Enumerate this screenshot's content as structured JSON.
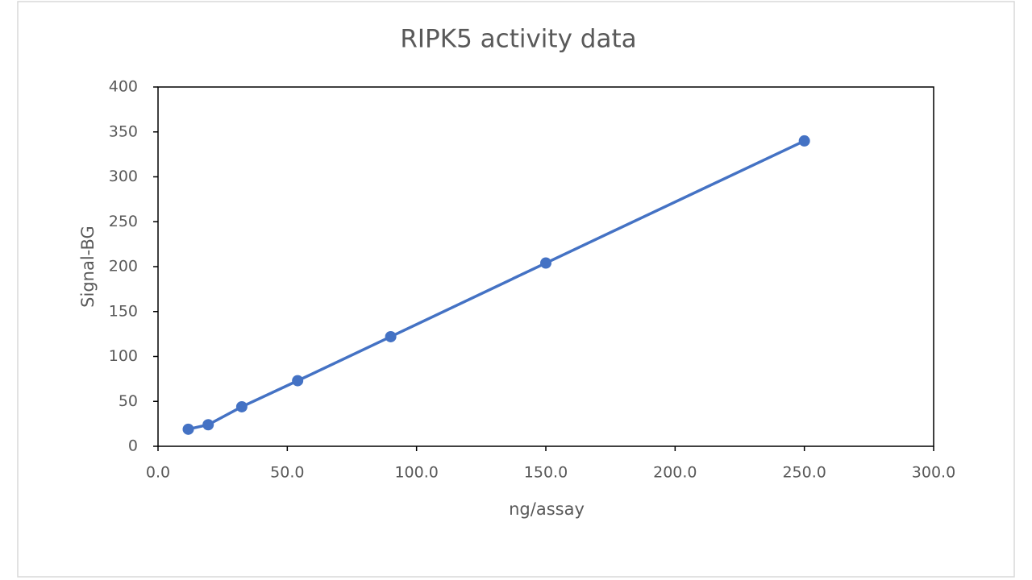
{
  "chart_data": {
    "type": "scatter",
    "title": "RIPK5 activity data",
    "x_label": "ng/assay",
    "y_label": "Signal-BG",
    "series": [
      {
        "name": "Signal-BG",
        "color": "#4472c4",
        "x": [
          11.7,
          19.4,
          32.4,
          54,
          90,
          150,
          250
        ],
        "values": [
          19,
          24,
          44,
          73,
          122,
          204,
          340
        ]
      }
    ],
    "xlim": [
      0,
      300
    ],
    "xticks": [
      {
        "value": 0,
        "label": "0.0"
      },
      {
        "value": 50,
        "label": "50.0"
      },
      {
        "value": 100,
        "label": "100.0"
      },
      {
        "value": 150,
        "label": "150.0"
      },
      {
        "value": 200,
        "label": "200.0"
      },
      {
        "value": 250,
        "label": "250.0"
      },
      {
        "value": 300,
        "label": "300.0"
      }
    ],
    "ylim": [
      0,
      400
    ],
    "yticks": [
      0,
      50,
      100,
      150,
      200,
      250,
      300,
      350,
      400
    ],
    "grid": false,
    "lines": true
  }
}
